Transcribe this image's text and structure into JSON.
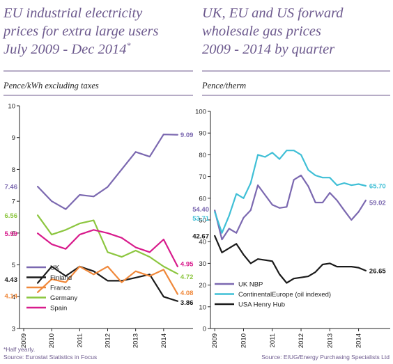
{
  "footnote": "*Half yearly.",
  "chart_data": [
    {
      "type": "line",
      "title_lines": [
        "EU industrial electricity",
        "prices for extra large users",
        "July 2009 - Dec 2014*"
      ],
      "ylabel": "Pence/kWh excluding taxes",
      "ylim": [
        3,
        10
      ],
      "yticks": [
        "3",
        "4",
        "5",
        "6",
        "7",
        "8",
        "9",
        "10"
      ],
      "x_ticks": [
        "2009",
        "2010",
        "2011",
        "2012",
        "2013",
        "2014"
      ],
      "x": [
        2009.5,
        2010.0,
        2010.5,
        2011.0,
        2011.5,
        2012.0,
        2012.5,
        2013.0,
        2013.5,
        2014.0,
        2014.5
      ],
      "series": [
        {
          "name": "UK",
          "color": "#7b68b0",
          "values": [
            7.46,
            7.0,
            6.75,
            7.2,
            7.15,
            7.45,
            8.0,
            8.55,
            8.4,
            9.1,
            9.09
          ],
          "start_label": "7.46",
          "end_label": "9.09"
        },
        {
          "name": "Finland",
          "color": "#1a1a1a",
          "values": [
            4.43,
            4.95,
            4.65,
            4.95,
            4.8,
            4.5,
            4.5,
            4.6,
            4.7,
            4.0,
            3.86
          ],
          "start_label": "4.43",
          "end_label": "3.86"
        },
        {
          "name": "France",
          "color": "#f0883a",
          "values": [
            4.14,
            4.55,
            4.45,
            4.95,
            4.7,
            4.95,
            4.45,
            4.8,
            4.65,
            4.85,
            4.08
          ],
          "start_label": "4.14",
          "end_label": "4.08"
        },
        {
          "name": "Germany",
          "color": "#8cc63f",
          "values": [
            6.56,
            5.95,
            6.1,
            6.3,
            6.4,
            5.4,
            5.25,
            5.45,
            5.25,
            4.95,
            4.72
          ],
          "start_label": "6.56",
          "end_label": "4.72"
        },
        {
          "name": "Spain",
          "color": "#d81b8c",
          "values": [
            5.99,
            5.65,
            5.5,
            5.95,
            6.1,
            6.0,
            5.85,
            5.55,
            5.4,
            5.8,
            4.95
          ],
          "start_label": "5.99",
          "end_label": "4.95"
        }
      ],
      "legend_position": "bottom-left",
      "source": "Source: Eurostat Statistics in Focus",
      "grid": false
    },
    {
      "type": "line",
      "title_lines": [
        "UK, EU and US forward",
        "wholesale gas prices",
        "2009 - 2014 by quarter"
      ],
      "ylabel": "Pence/therm",
      "ylim": [
        0,
        100
      ],
      "yticks": [
        "0",
        "10",
        "20",
        "30",
        "40",
        "50",
        "60",
        "70",
        "80",
        "90",
        "100"
      ],
      "x_ticks": [
        "2009",
        "2010",
        "2011",
        "2012",
        "2013",
        "2014"
      ],
      "x": [
        2009.0,
        2009.25,
        2009.5,
        2009.75,
        2010.0,
        2010.25,
        2010.5,
        2010.75,
        2011.0,
        2011.25,
        2011.5,
        2011.75,
        2012.0,
        2012.25,
        2012.5,
        2012.75,
        2013.0,
        2013.25,
        2013.5,
        2013.75,
        2014.0,
        2014.25
      ],
      "series": [
        {
          "name": "UK NBP",
          "color": "#7b68b0",
          "values": [
            54.4,
            41.0,
            46.0,
            44.0,
            51.0,
            54.5,
            66.0,
            61.5,
            57.0,
            55.5,
            56.0,
            68.5,
            70.5,
            65.5,
            58.0,
            58.0,
            62.5,
            59.02,
            54.4,
            50.0,
            53.71,
            59.02
          ],
          "start_label": "54.40",
          "end_label": "59.02"
        },
        {
          "name": "ContinentalEurope (oil indexed)",
          "color": "#3fbfd6",
          "values": [
            53.71,
            44.0,
            52.0,
            62.0,
            60.0,
            67.0,
            80.0,
            79.0,
            81.0,
            78.0,
            82.0,
            82.0,
            80.0,
            73.0,
            70.5,
            69.5,
            69.5,
            66.0,
            67.0,
            66.0,
            66.5,
            65.7
          ],
          "start_label": "53.71",
          "end_label": "65.70"
        },
        {
          "name": "USA Henry Hub",
          "color": "#1a1a1a",
          "values": [
            42.67,
            35.0,
            37.0,
            39.0,
            34.0,
            30.0,
            32.0,
            31.5,
            31.0,
            25.0,
            21.0,
            23.0,
            23.5,
            24.0,
            26.0,
            29.5,
            30.0,
            28.5,
            28.5,
            28.5,
            28.0,
            26.65
          ],
          "start_label": "42.67",
          "end_label": "26.65"
        }
      ],
      "legend_position": "bottom-left",
      "source": "Source: EIUG/Energy Purchasing Specialists Ltd",
      "grid": false
    }
  ]
}
